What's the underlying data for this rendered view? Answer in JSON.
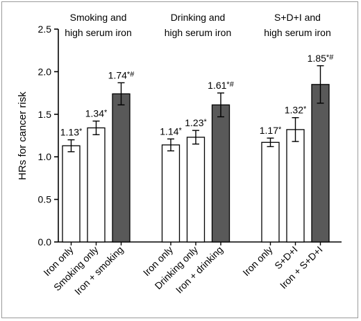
{
  "chart_data": {
    "type": "bar",
    "ylabel": "HRs for cancer risk",
    "ylim": [
      0.0,
      2.5
    ],
    "yticks": [
      "0.0",
      "0.5",
      "1.0",
      "1.5",
      "2.0",
      "2.5"
    ],
    "ytick_values": [
      0.0,
      0.5,
      1.0,
      1.5,
      2.0,
      2.5
    ],
    "grid": false,
    "colors": {
      "open": "#ffffff",
      "combined": "#595959",
      "outline": "#000000"
    },
    "groups": [
      {
        "title_lines": [
          "Smoking and",
          "high serum iron"
        ],
        "bars": [
          {
            "category": "Iron only",
            "value": 1.13,
            "err_low": 1.06,
            "err_high": 1.2,
            "label": "1.13*",
            "fill": "open"
          },
          {
            "category": "Smoking only",
            "value": 1.34,
            "err_low": 1.26,
            "err_high": 1.42,
            "label": "1.34*",
            "fill": "open"
          },
          {
            "category": "Iron + smoking",
            "value": 1.74,
            "err_low": 1.61,
            "err_high": 1.87,
            "label": "1.74*#",
            "fill": "combined"
          }
        ]
      },
      {
        "title_lines": [
          "Drinking and",
          "high serum iron"
        ],
        "bars": [
          {
            "category": "Iron only",
            "value": 1.14,
            "err_low": 1.07,
            "err_high": 1.21,
            "label": "1.14*",
            "fill": "open"
          },
          {
            "category": "Drinking only",
            "value": 1.23,
            "err_low": 1.15,
            "err_high": 1.31,
            "label": "1.23*",
            "fill": "open"
          },
          {
            "category": "Iron + drinking",
            "value": 1.61,
            "err_low": 1.47,
            "err_high": 1.75,
            "label": "1.61*#",
            "fill": "combined"
          }
        ]
      },
      {
        "title_lines": [
          "S+D+I and",
          "high serum iron"
        ],
        "bars": [
          {
            "category": "Iron only",
            "value": 1.17,
            "err_low": 1.12,
            "err_high": 1.22,
            "label": "1.17*",
            "fill": "open"
          },
          {
            "category": "S+D+I",
            "value": 1.32,
            "err_low": 1.18,
            "err_high": 1.46,
            "label": "1.32*",
            "fill": "open"
          },
          {
            "category": "Iron + S+D+I",
            "value": 1.85,
            "err_low": 1.63,
            "err_high": 2.07,
            "label": "1.85*#",
            "fill": "combined"
          }
        ]
      }
    ]
  }
}
